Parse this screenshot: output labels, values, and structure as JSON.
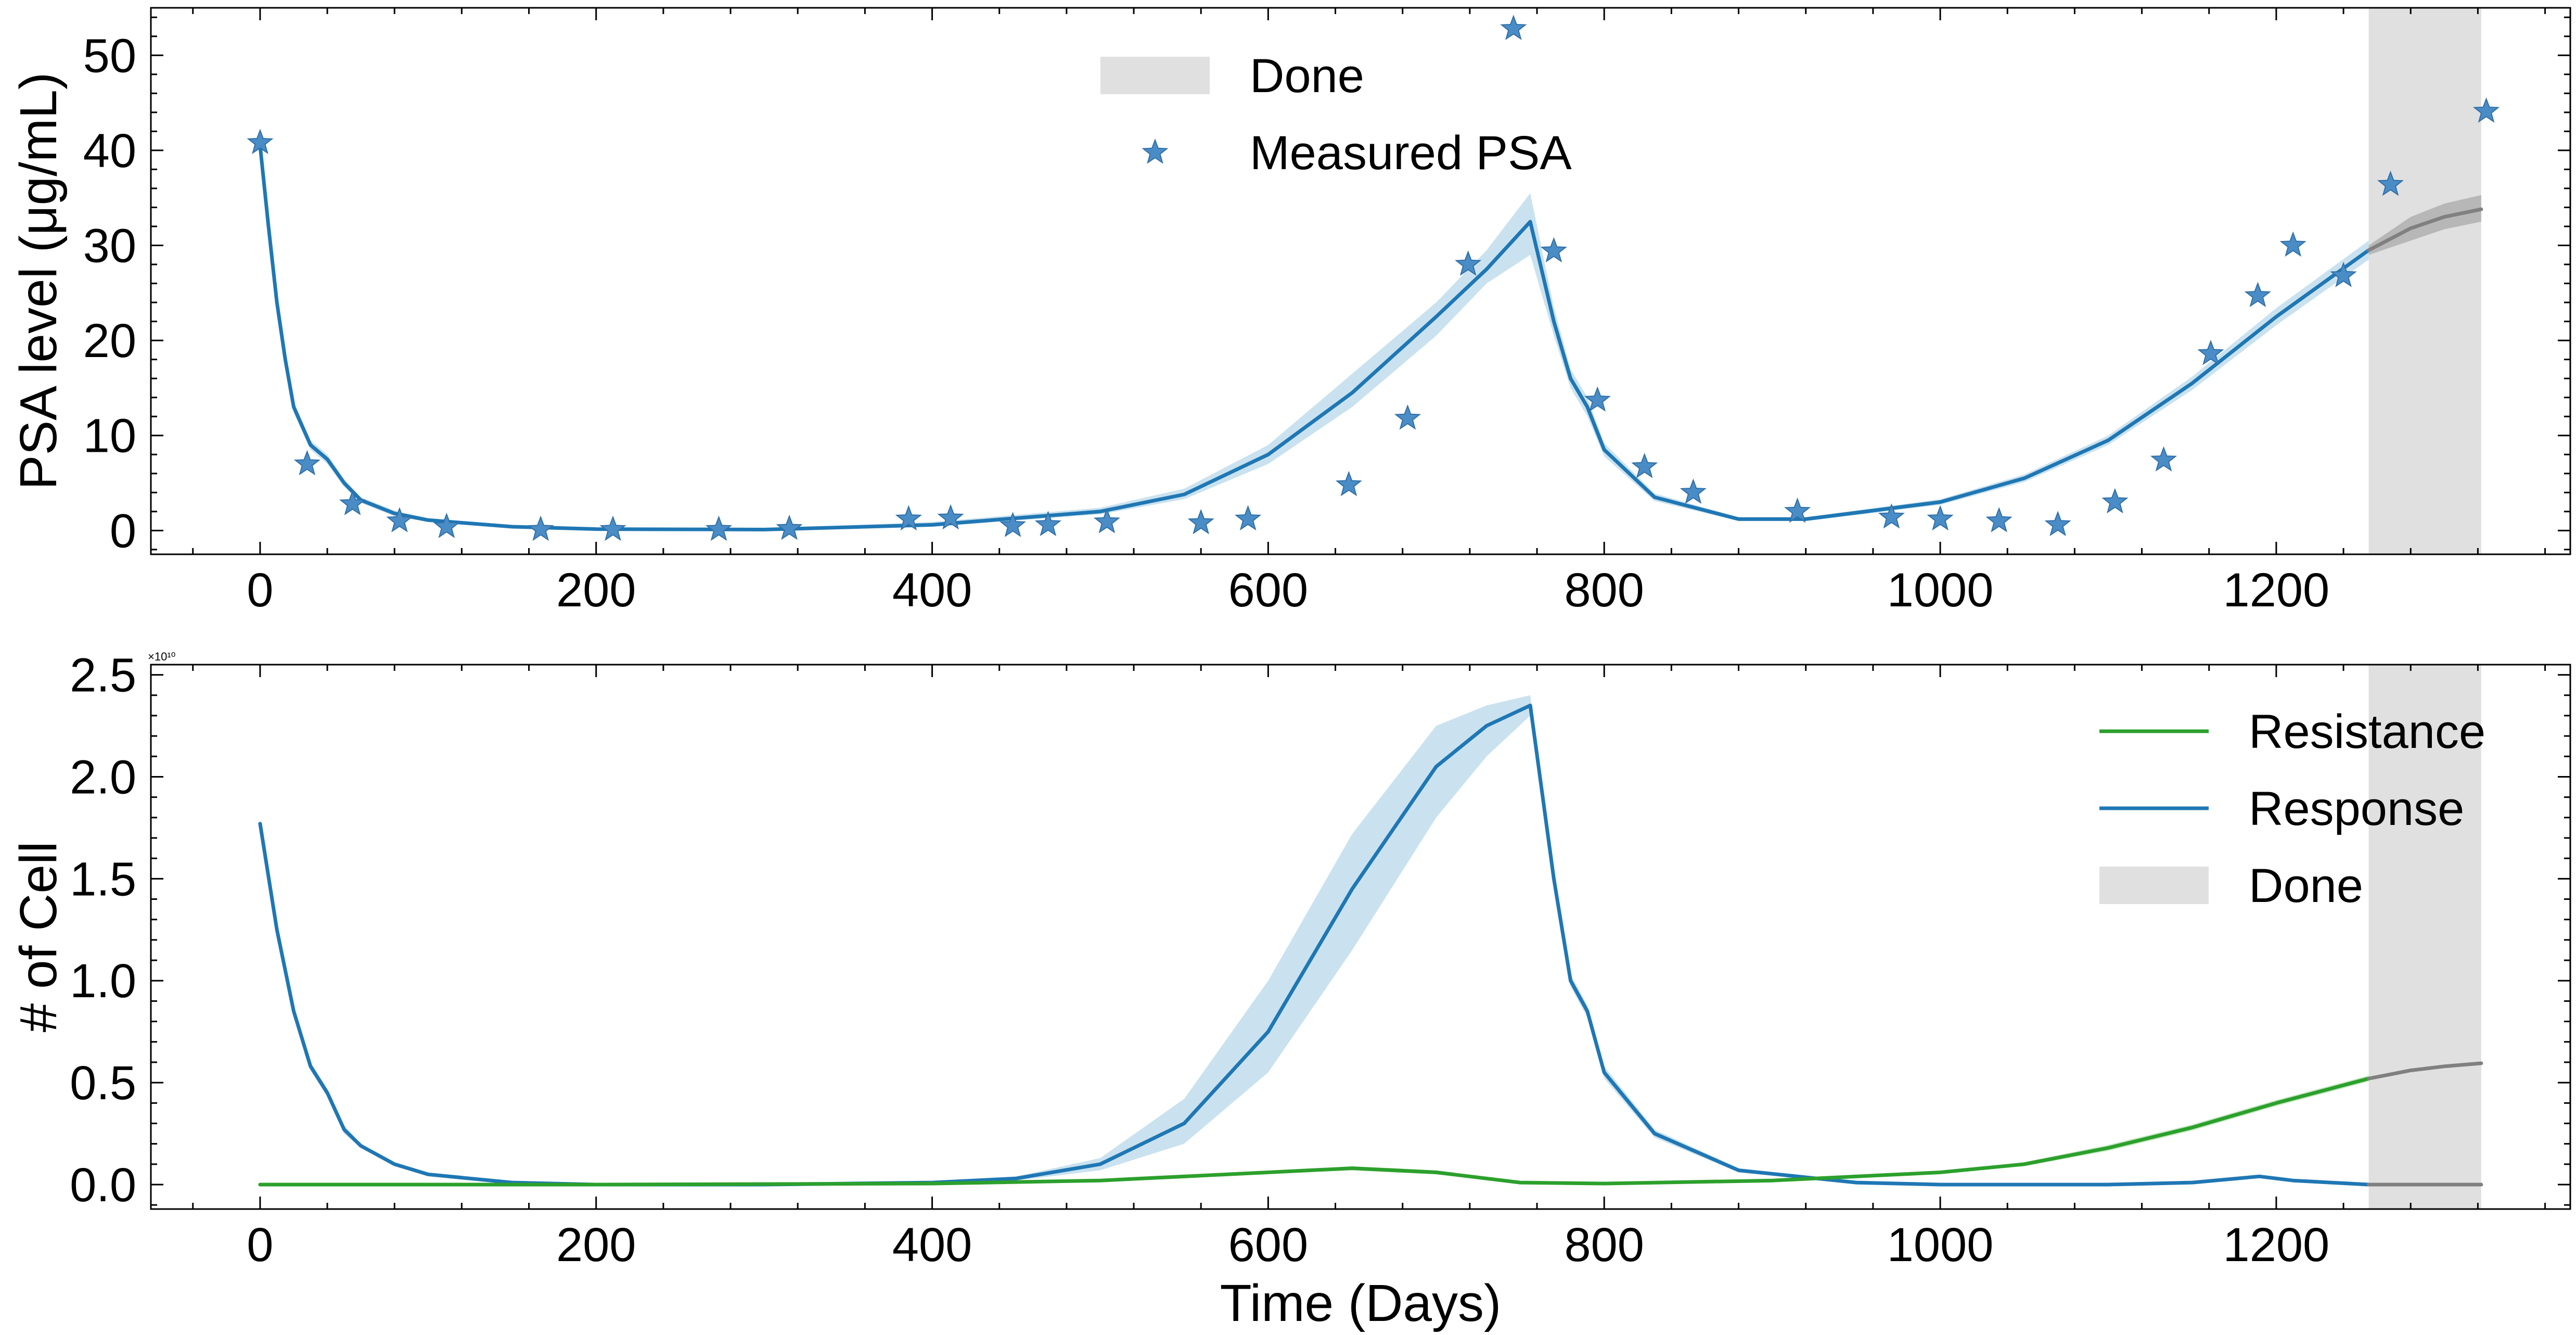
{
  "colors": {
    "response": "#1f77b4",
    "response_band": "#9ecae1",
    "resistance": "#2ca02c",
    "resistance_band": "#a1d99b",
    "measured": "#4a8cc6",
    "forecast": "#808080",
    "forecast_band": "#a9a9a9",
    "done_band": "#e0e0e0"
  },
  "chart_data": [
    {
      "type": "line",
      "xlabel": "",
      "ylabel": "PSA level (μg/mL)",
      "xlim": [
        -65,
        1375
      ],
      "ylim": [
        -2.5,
        55
      ],
      "xticks": [
        0,
        200,
        400,
        600,
        800,
        1000,
        1200
      ],
      "xtick_labels": [
        "0",
        "200",
        "400",
        "600",
        "800",
        "1000",
        "1200"
      ],
      "yticks": [
        0,
        10,
        20,
        30,
        40,
        50
      ],
      "ytick_labels": [
        "0",
        "10",
        "20",
        "30",
        "40",
        "50"
      ],
      "grid": false,
      "legend_position": "upper-center",
      "legend": [
        {
          "label": "Done",
          "kind": "band"
        },
        {
          "label": "Measured PSA",
          "kind": "star"
        }
      ],
      "done_region": [
        1255,
        1322
      ],
      "series": [
        {
          "role": "fit",
          "color": "response",
          "x": [
            0,
            5,
            10,
            15,
            20,
            30,
            40,
            50,
            60,
            80,
            100,
            150,
            200,
            300,
            400,
            500,
            550,
            600,
            650,
            700,
            730,
            756,
            770,
            780,
            790,
            800,
            830,
            880,
            920,
            1000,
            1050,
            1100,
            1150,
            1200,
            1255
          ],
          "y": [
            40.5,
            32,
            24,
            18,
            13,
            9,
            7.5,
            5,
            3.2,
            1.8,
            1.1,
            0.4,
            0.15,
            0.1,
            0.6,
            2.0,
            3.8,
            8.0,
            14.5,
            22.5,
            27.5,
            32.5,
            22,
            16,
            13,
            8.5,
            3.5,
            1.2,
            1.2,
            3.0,
            5.5,
            9.5,
            15.5,
            22.5,
            29.5
          ],
          "band_lower": [
            39.5,
            31,
            23.2,
            17.3,
            12.4,
            8.5,
            7.0,
            4.6,
            2.9,
            1.5,
            0.9,
            0.3,
            0.1,
            0.05,
            0.4,
            1.7,
            3.3,
            7.0,
            13.0,
            20.5,
            26.0,
            29.0,
            20.5,
            15.0,
            12.0,
            7.8,
            3.1,
            1.0,
            1.0,
            2.7,
            5.1,
            9.0,
            14.8,
            21.6,
            28.5
          ],
          "band_upper": [
            41.5,
            33,
            24.8,
            18.7,
            13.6,
            9.5,
            8.0,
            5.4,
            3.5,
            2.1,
            1.3,
            0.5,
            0.25,
            0.2,
            0.9,
            2.4,
            4.4,
            9.0,
            16.5,
            24.0,
            29.5,
            35.5,
            23.5,
            17.0,
            14.0,
            9.2,
            3.9,
            1.4,
            1.4,
            3.3,
            5.9,
            10.0,
            16.2,
            23.4,
            30.5
          ]
        },
        {
          "role": "forecast",
          "color": "forecast",
          "x": [
            1255,
            1280,
            1300,
            1322
          ],
          "y": [
            29.5,
            31.8,
            33.0,
            33.8
          ],
          "band_lower": [
            29.0,
            30.5,
            31.7,
            32.5
          ],
          "band_upper": [
            30.0,
            33.0,
            34.4,
            35.3
          ]
        }
      ],
      "points": {
        "label": "Measured PSA",
        "x": [
          0,
          28,
          55,
          83,
          111,
          167,
          210,
          273,
          315,
          386,
          411,
          448,
          469,
          504,
          560,
          588,
          648,
          683,
          719,
          746,
          770,
          796,
          824,
          853,
          915,
          971,
          1000,
          1035,
          1070,
          1104,
          1133,
          1161,
          1189,
          1210,
          1240,
          1268,
          1325
        ],
        "y": [
          40.8,
          7.0,
          2.8,
          1.0,
          0.4,
          0.1,
          0.1,
          0.1,
          0.2,
          1.2,
          1.3,
          0.5,
          0.6,
          0.9,
          0.8,
          1.2,
          4.8,
          11.8,
          28.0,
          52.8,
          29.4,
          13.7,
          6.7,
          4.0,
          2.0,
          1.4,
          1.2,
          1.0,
          0.6,
          3.0,
          7.4,
          18.6,
          24.7,
          30.0,
          26.8,
          36.4,
          44.1
        ]
      }
    },
    {
      "type": "line",
      "xlabel": "Time (Days)",
      "ylabel": "# of Cell",
      "xlim": [
        -65,
        1375
      ],
      "ylim": [
        -0.12,
        2.55
      ],
      "offset_label": "×10¹⁰",
      "xticks": [
        0,
        200,
        400,
        600,
        800,
        1000,
        1200
      ],
      "xtick_labels": [
        "0",
        "200",
        "400",
        "600",
        "800",
        "1000",
        "1200"
      ],
      "yticks": [
        0.0,
        0.5,
        1.0,
        1.5,
        2.0,
        2.5
      ],
      "ytick_labels": [
        "0.0",
        "0.5",
        "1.0",
        "1.5",
        "2.0",
        "2.5"
      ],
      "grid": false,
      "legend_position": "upper-right",
      "legend": [
        {
          "label": "Resistance",
          "kind": "line",
          "color": "resistance"
        },
        {
          "label": "Response",
          "kind": "line",
          "color": "response"
        },
        {
          "label": "Done",
          "kind": "band"
        }
      ],
      "done_region": [
        1255,
        1322
      ],
      "series": [
        {
          "name": "Response",
          "color": "response",
          "x": [
            0,
            10,
            20,
            30,
            40,
            50,
            60,
            80,
            100,
            150,
            200,
            300,
            400,
            450,
            500,
            550,
            600,
            650,
            700,
            730,
            756,
            770,
            780,
            790,
            800,
            830,
            880,
            950,
            1000,
            1100,
            1150,
            1190,
            1210,
            1255
          ],
          "y": [
            1.77,
            1.25,
            0.85,
            0.58,
            0.45,
            0.27,
            0.19,
            0.1,
            0.05,
            0.01,
            0.0,
            0.0,
            0.01,
            0.03,
            0.1,
            0.3,
            0.75,
            1.45,
            2.05,
            2.25,
            2.35,
            1.5,
            1.0,
            0.85,
            0.55,
            0.25,
            0.07,
            0.01,
            0.0,
            0.0,
            0.01,
            0.04,
            0.02,
            0.0
          ],
          "band_lower": [
            1.75,
            1.23,
            0.83,
            0.56,
            0.43,
            0.25,
            0.18,
            0.09,
            0.045,
            0.008,
            0.0,
            0.0,
            0.008,
            0.02,
            0.07,
            0.2,
            0.55,
            1.15,
            1.8,
            2.1,
            2.3,
            1.45,
            0.97,
            0.82,
            0.52,
            0.23,
            0.06,
            0.008,
            0.0,
            0.0,
            0.008,
            0.035,
            0.018,
            0.0
          ],
          "band_upper": [
            1.79,
            1.27,
            0.87,
            0.6,
            0.47,
            0.29,
            0.2,
            0.11,
            0.055,
            0.012,
            0.0,
            0.0,
            0.012,
            0.04,
            0.13,
            0.42,
            1.0,
            1.72,
            2.25,
            2.35,
            2.4,
            1.55,
            1.03,
            0.88,
            0.58,
            0.27,
            0.08,
            0.012,
            0.0,
            0.0,
            0.012,
            0.045,
            0.022,
            0.0
          ]
        },
        {
          "name": "Resistance",
          "color": "resistance",
          "x": [
            0,
            200,
            400,
            500,
            600,
            650,
            700,
            750,
            800,
            900,
            1000,
            1050,
            1100,
            1150,
            1200,
            1255
          ],
          "y": [
            0.0,
            0.0,
            0.005,
            0.02,
            0.06,
            0.08,
            0.06,
            0.01,
            0.005,
            0.02,
            0.06,
            0.1,
            0.18,
            0.28,
            0.4,
            0.52
          ],
          "band_lower": [
            0.0,
            0.0,
            0.004,
            0.018,
            0.055,
            0.07,
            0.05,
            0.008,
            0.004,
            0.018,
            0.055,
            0.09,
            0.165,
            0.265,
            0.385,
            0.505
          ],
          "band_upper": [
            0.0,
            0.0,
            0.006,
            0.022,
            0.065,
            0.09,
            0.07,
            0.012,
            0.006,
            0.022,
            0.065,
            0.11,
            0.195,
            0.295,
            0.415,
            0.535
          ]
        },
        {
          "role": "forecast",
          "color": "forecast",
          "x": [
            1255,
            1280,
            1300,
            1322
          ],
          "y": [
            0.52,
            0.56,
            0.58,
            0.595
          ]
        },
        {
          "role": "forecast",
          "color": "forecast",
          "x": [
            1255,
            1290,
            1322
          ],
          "y": [
            0.0,
            0.0,
            0.0
          ]
        }
      ]
    }
  ]
}
